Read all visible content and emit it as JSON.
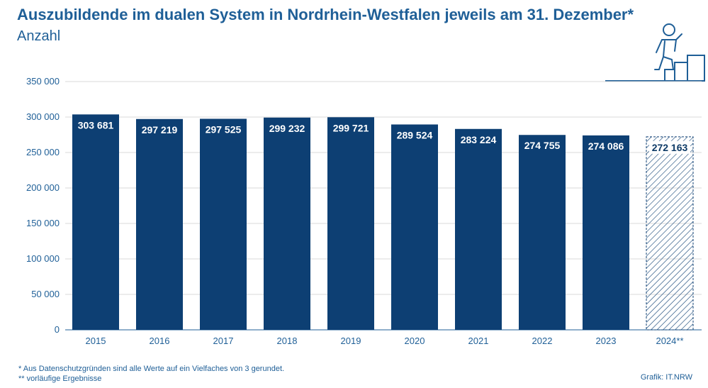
{
  "header": {
    "title": "Auszubildende im dualen System in Nordrhein-Westfalen jeweils am 31. Dezember*",
    "subtitle": "Anzahl"
  },
  "footnotes": {
    "note1": "*  Aus Datenschutzgründen sind alle Werte auf ein Vielfaches von 3 gerundet.",
    "note2": "**  vorläufige Ergebnisse",
    "credit": "Grafik: IT.NRW"
  },
  "icons": {
    "logo": "person-climbing-stairs-icon"
  },
  "colors": {
    "bar": "#0d3f73",
    "accent": "#1f5f97",
    "grid": "#d9d9d9"
  },
  "chart_data": {
    "type": "bar",
    "categories": [
      "2015",
      "2016",
      "2017",
      "2018",
      "2019",
      "2020",
      "2021",
      "2022",
      "2023",
      "2024**"
    ],
    "values": [
      303681,
      297219,
      297525,
      299232,
      299721,
      289524,
      283224,
      274755,
      274086,
      272163
    ],
    "value_labels": [
      "303 681",
      "297 219",
      "297 525",
      "299 232",
      "299 721",
      "289 524",
      "283 224",
      "274 755",
      "274 086",
      "272 163"
    ],
    "provisional": [
      false,
      false,
      false,
      false,
      false,
      false,
      false,
      false,
      false,
      true
    ],
    "yticks": [
      0,
      50000,
      100000,
      150000,
      200000,
      250000,
      300000,
      350000
    ],
    "ytick_labels": [
      "0",
      "50 000",
      "100 000",
      "150 000",
      "200 000",
      "250 000",
      "300 000",
      "350 000"
    ],
    "ylim": [
      0,
      350000
    ],
    "grid": true,
    "xlabel": "",
    "ylabel": ""
  }
}
